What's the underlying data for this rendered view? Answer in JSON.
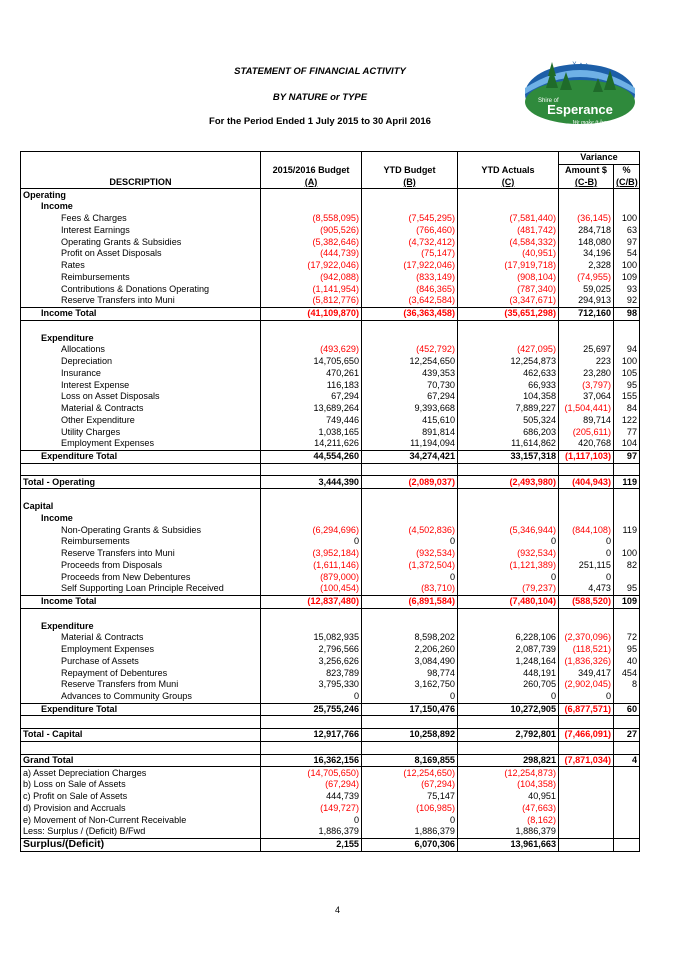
{
  "header": {
    "title": "STATEMENT OF FINANCIAL ACTIVITY",
    "subtitle": "BY NATURE or TYPE",
    "period": "For the Period Ended 1 July 2015 to 30 April 2016"
  },
  "logo": {
    "top_text": "Shire of",
    "name": "Esperance",
    "tagline": "We make it happen!"
  },
  "table": {
    "variance_header": "Variance",
    "columns": {
      "description": "DESCRIPTION",
      "budget": "2015/2016 Budget",
      "budget_sub": "(A)",
      "ytd_budget": "YTD Budget",
      "ytd_budget_sub": "(B)",
      "ytd_actuals": "YTD Actuals",
      "ytd_actuals_sub": "(C)",
      "amount": "Amount $",
      "amount_sub": "(C-B)",
      "pct": "%",
      "pct_sub": "(C/B)"
    },
    "rows": [
      {
        "label": "Operating",
        "lvl": 0,
        "bold": true
      },
      {
        "label": "Income",
        "lvl": 1,
        "bold": true
      },
      {
        "label": "Fees & Charges",
        "lvl": 2,
        "v": [
          "(8,558,095)",
          "(7,545,295)",
          "(7,581,440)",
          "(36,145)",
          "100"
        ]
      },
      {
        "label": "Interest Earnings",
        "lvl": 2,
        "v": [
          "(905,526)",
          "(766,460)",
          "(481,742)",
          "284,718",
          "63"
        ]
      },
      {
        "label": "Operating Grants & Subsidies",
        "lvl": 2,
        "v": [
          "(5,382,646)",
          "(4,732,412)",
          "(4,584,332)",
          "148,080",
          "97"
        ]
      },
      {
        "label": "Profit on Asset Disposals",
        "lvl": 2,
        "v": [
          "(444,739)",
          "(75,147)",
          "(40,951)",
          "34,196",
          "54"
        ]
      },
      {
        "label": "Rates",
        "lvl": 2,
        "v": [
          "(17,922,046)",
          "(17,922,046)",
          "(17,919,718)",
          "2,328",
          "100"
        ]
      },
      {
        "label": "Reimbursements",
        "lvl": 2,
        "v": [
          "(942,088)",
          "(833,149)",
          "(908,104)",
          "(74,955)",
          "109"
        ]
      },
      {
        "label": "Contributions & Donations Operating",
        "lvl": 2,
        "v": [
          "(1,141,954)",
          "(846,365)",
          "(787,340)",
          "59,025",
          "93"
        ]
      },
      {
        "label": "Reserve Transfers into Muni",
        "lvl": 2,
        "v": [
          "(5,812,776)",
          "(3,642,584)",
          "(3,347,671)",
          "294,913",
          "92"
        ]
      },
      {
        "label": "Income Total",
        "lvl": 1,
        "bold": true,
        "total": true,
        "v": [
          "(41,109,870)",
          "(36,363,458)",
          "(35,651,298)",
          "712,160",
          "98"
        ]
      },
      {
        "label": "",
        "lvl": 0
      },
      {
        "label": "Expenditure",
        "lvl": 1,
        "bold": true
      },
      {
        "label": "Allocations",
        "lvl": 2,
        "v": [
          "(493,629)",
          "(452,792)",
          "(427,095)",
          "25,697",
          "94"
        ]
      },
      {
        "label": "Depreciation",
        "lvl": 2,
        "v": [
          "14,705,650",
          "12,254,650",
          "12,254,873",
          "223",
          "100"
        ]
      },
      {
        "label": "Insurance",
        "lvl": 2,
        "v": [
          "470,261",
          "439,353",
          "462,633",
          "23,280",
          "105"
        ]
      },
      {
        "label": "Interest Expense",
        "lvl": 2,
        "v": [
          "116,183",
          "70,730",
          "66,933",
          "(3,797)",
          "95"
        ]
      },
      {
        "label": "Loss on Asset Disposals",
        "lvl": 2,
        "v": [
          "67,294",
          "67,294",
          "104,358",
          "37,064",
          "155"
        ]
      },
      {
        "label": "Material & Contracts",
        "lvl": 2,
        "v": [
          "13,689,264",
          "9,393,668",
          "7,889,227",
          "(1,504,441)",
          "84"
        ]
      },
      {
        "label": "Other Expenditure",
        "lvl": 2,
        "v": [
          "749,446",
          "415,610",
          "505,324",
          "89,714",
          "122"
        ]
      },
      {
        "label": "Utility Charges",
        "lvl": 2,
        "v": [
          "1,038,165",
          "891,814",
          "686,203",
          "(205,611)",
          "77"
        ]
      },
      {
        "label": "Employment Expenses",
        "lvl": 2,
        "v": [
          "14,211,626",
          "11,194,094",
          "11,614,862",
          "420,768",
          "104"
        ]
      },
      {
        "label": "Expenditure Total",
        "lvl": 1,
        "bold": true,
        "total": true,
        "v": [
          "44,554,260",
          "34,274,421",
          "33,157,318",
          "(1,117,103)",
          "97"
        ]
      },
      {
        "label": "",
        "lvl": 0
      },
      {
        "label": "Total - Operating",
        "lvl": 0,
        "bold": true,
        "grand": true,
        "v": [
          "3,444,390",
          "(2,089,037)",
          "(2,493,980)",
          "(404,943)",
          "119"
        ]
      },
      {
        "label": "",
        "lvl": 0
      },
      {
        "label": "Capital",
        "lvl": 0,
        "bold": true
      },
      {
        "label": "Income",
        "lvl": 1,
        "bold": true
      },
      {
        "label": "Non-Operating Grants & Subsidies",
        "lvl": 2,
        "v": [
          "(6,294,696)",
          "(4,502,836)",
          "(5,346,944)",
          "(844,108)",
          "119"
        ]
      },
      {
        "label": "Reimbursements",
        "lvl": 2,
        "v": [
          "0",
          "0",
          "0",
          "0",
          ""
        ]
      },
      {
        "label": "Reserve Transfers into Muni",
        "lvl": 2,
        "v": [
          "(3,952,184)",
          "(932,534)",
          "(932,534)",
          "0",
          "100"
        ]
      },
      {
        "label": "Proceeds from Disposals",
        "lvl": 2,
        "v": [
          "(1,611,146)",
          "(1,372,504)",
          "(1,121,389)",
          "251,115",
          "82"
        ]
      },
      {
        "label": "Proceeds from New Debentures",
        "lvl": 2,
        "v": [
          "(879,000)",
          "0",
          "0",
          "0",
          ""
        ]
      },
      {
        "label": "Self Supporting Loan Principle Received",
        "lvl": 2,
        "v": [
          "(100,454)",
          "(83,710)",
          "(79,237)",
          "4,473",
          "95"
        ]
      },
      {
        "label": "Income Total",
        "lvl": 1,
        "bold": true,
        "total": true,
        "v": [
          "(12,837,480)",
          "(6,891,584)",
          "(7,480,104)",
          "(588,520)",
          "109"
        ]
      },
      {
        "label": "",
        "lvl": 0
      },
      {
        "label": "Expenditure",
        "lvl": 1,
        "bold": true
      },
      {
        "label": "Material & Contracts",
        "lvl": 2,
        "v": [
          "15,082,935",
          "8,598,202",
          "6,228,106",
          "(2,370,096)",
          "72"
        ]
      },
      {
        "label": "Employment Expenses",
        "lvl": 2,
        "v": [
          "2,796,566",
          "2,206,260",
          "2,087,739",
          "(118,521)",
          "95"
        ]
      },
      {
        "label": "Purchase of Assets",
        "lvl": 2,
        "v": [
          "3,256,626",
          "3,084,490",
          "1,248,164",
          "(1,836,326)",
          "40"
        ]
      },
      {
        "label": "Repayment of Debentures",
        "lvl": 2,
        "v": [
          "823,789",
          "98,774",
          "448,191",
          "349,417",
          "454"
        ]
      },
      {
        "label": "Reserve Transfers from Muni",
        "lvl": 2,
        "v": [
          "3,795,330",
          "3,162,750",
          "260,705",
          "(2,902,045)",
          "8"
        ]
      },
      {
        "label": "Advances to Community Groups",
        "lvl": 2,
        "v": [
          "0",
          "0",
          "0",
          "0",
          ""
        ]
      },
      {
        "label": "Expenditure Total",
        "lvl": 1,
        "bold": true,
        "total": true,
        "v": [
          "25,755,246",
          "17,150,476",
          "10,272,905",
          "(6,877,571)",
          "60"
        ]
      },
      {
        "label": "",
        "lvl": 0
      },
      {
        "label": "Total - Capital",
        "lvl": 0,
        "bold": true,
        "grand": true,
        "v": [
          "12,917,766",
          "10,258,892",
          "2,792,801",
          "(7,466,091)",
          "27"
        ]
      },
      {
        "label": "",
        "lvl": 0
      },
      {
        "label": "Grand Total",
        "lvl": 0,
        "bold": true,
        "grand": true,
        "v": [
          "16,362,156",
          "8,169,855",
          "298,821",
          "(7,871,034)",
          "4"
        ]
      },
      {
        "label": "a) Asset Depreciation Charges",
        "lvl": 0,
        "adj": true,
        "v": [
          "(14,705,650)",
          "(12,254,650)",
          "(12,254,873)",
          "",
          ""
        ]
      },
      {
        "label": "b) Loss on Sale of Assets",
        "lvl": 0,
        "adj": true,
        "v": [
          "(67,294)",
          "(67,294)",
          "(104,358)",
          "",
          ""
        ]
      },
      {
        "label": "c) Profit on Sale of Assets",
        "lvl": 0,
        "adj": true,
        "v": [
          "444,739",
          "75,147",
          "40,951",
          "",
          ""
        ]
      },
      {
        "label": "d) Provision and Accruals",
        "lvl": 0,
        "adj": true,
        "v": [
          "(149,727)",
          "(106,985)",
          "(47,663)",
          "",
          ""
        ]
      },
      {
        "label": "e) Movement of Non-Current Receivable",
        "lvl": 0,
        "adj": true,
        "v": [
          "0",
          "0",
          "(8,162)",
          "",
          ""
        ]
      },
      {
        "label": "Less: Surplus / (Deficit) B/Fwd",
        "lvl": 0,
        "adj": true,
        "v": [
          "1,886,379",
          "1,886,379",
          "1,886,379",
          "",
          ""
        ]
      },
      {
        "label": "Surplus/(Deficit)",
        "lvl": 0,
        "bold": true,
        "final": true,
        "v": [
          "2,155",
          "6,070,306",
          "13,961,663",
          "",
          ""
        ]
      }
    ]
  },
  "colors": {
    "negative": "#ff0000",
    "text": "#000000",
    "logo_blue": "#1d5fa8",
    "logo_green": "#2f8a3c"
  },
  "page_number": "4"
}
